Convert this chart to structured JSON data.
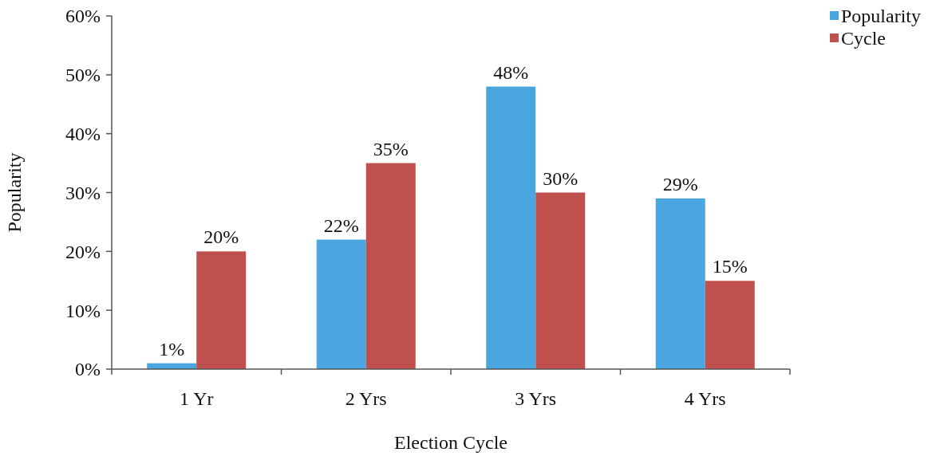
{
  "chart_data": {
    "type": "bar",
    "xlabel": "Election Cycle",
    "ylabel": "Popularity",
    "categories": [
      "1 Yr",
      "2 Yrs",
      "3 Yrs",
      "4 Yrs"
    ],
    "series": [
      {
        "name": "Popularity",
        "color": "#4aa6df",
        "values": [
          1,
          22,
          48,
          29
        ],
        "value_labels": [
          "1%",
          "22%",
          "48%",
          "29%"
        ]
      },
      {
        "name": "Cycle",
        "color": "#c0504d",
        "values": [
          20,
          35,
          30,
          15
        ],
        "value_labels": [
          "20%",
          "35%",
          "30%",
          "15%"
        ]
      }
    ],
    "ylim": [
      0,
      60
    ],
    "yticks": [
      {
        "value": 0,
        "label": "0%"
      },
      {
        "value": 10,
        "label": "10%"
      },
      {
        "value": 20,
        "label": "20%"
      },
      {
        "value": 30,
        "label": "30%"
      },
      {
        "value": 40,
        "label": "40%"
      },
      {
        "value": 50,
        "label": "50%"
      },
      {
        "value": 60,
        "label": "60%"
      }
    ],
    "legend": "top right"
  }
}
